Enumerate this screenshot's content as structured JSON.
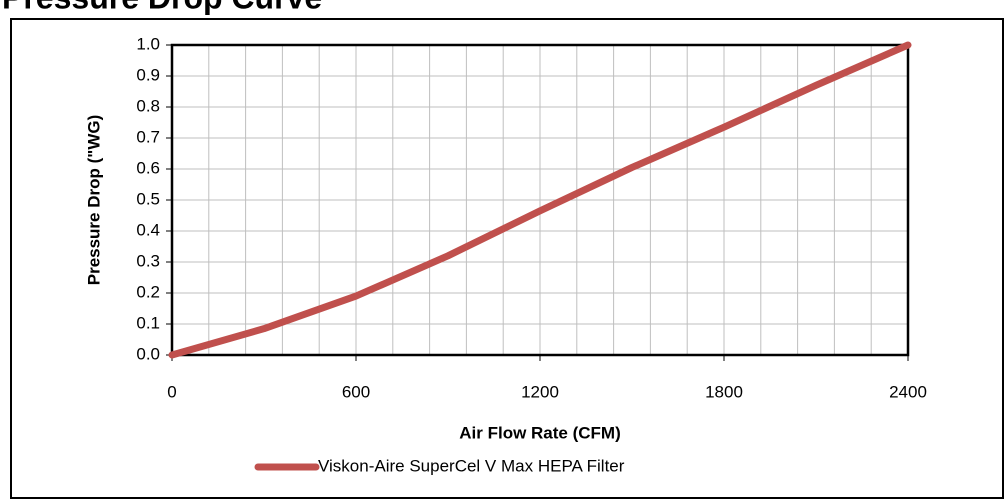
{
  "chart_data": {
    "type": "line",
    "title": "Pressure Drop Curve",
    "x_label": "Air Flow Rate (CFM)",
    "y_label": "Pressure Drop (\"WG)",
    "x": [
      0,
      300,
      600,
      900,
      1200,
      1500,
      1800,
      2100,
      2400
    ],
    "series": [
      {
        "name": "Viskon-Aire SuperCel V Max HEPA Filter",
        "color": "#c0504d",
        "values": [
          0,
          0.085,
          0.19,
          0.32,
          0.465,
          0.605,
          0.735,
          0.87,
          1.0
        ]
      }
    ],
    "xlim": [
      0,
      2400
    ],
    "xticks": [
      0,
      600,
      1200,
      1800,
      2400
    ],
    "xgrid": [
      0,
      120,
      240,
      360,
      480,
      600,
      720,
      840,
      960,
      1080,
      1200,
      1320,
      1440,
      1560,
      1680,
      1800,
      1920,
      2040,
      2160,
      2280,
      2400
    ],
    "ylim": [
      0,
      1
    ],
    "yticks": [
      {
        "value": 0,
        "label": "0.0"
      },
      0.1,
      0.2,
      0.3,
      0.4,
      0.5,
      0.6,
      0.7,
      0.8,
      0.9,
      {
        "value": 1,
        "label": "1.0"
      }
    ],
    "grid": true,
    "legend": "bottom"
  }
}
